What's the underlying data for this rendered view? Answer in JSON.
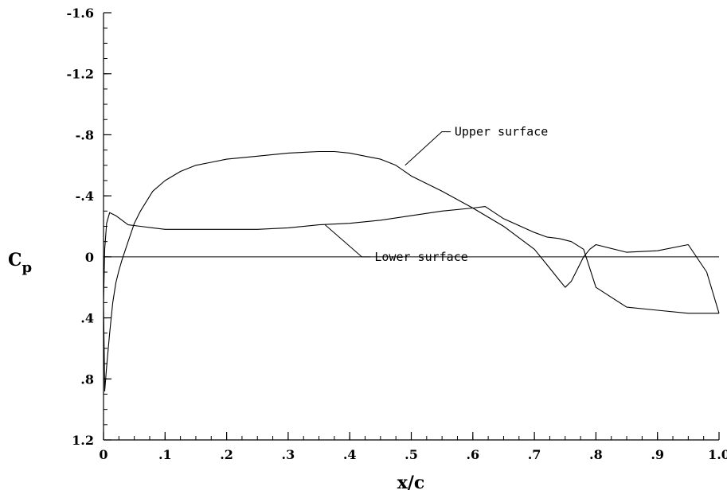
{
  "chart_data": {
    "type": "line",
    "xlabel": "x/c",
    "ylabel_main": "C",
    "ylabel_sub": "p",
    "xlim": [
      0,
      1.0
    ],
    "ylim": [
      1.2,
      -1.6
    ],
    "y_axis_inverted": true,
    "x_ticks": [
      {
        "v": 0,
        "label": "0"
      },
      {
        "v": 0.1,
        "label": ".1"
      },
      {
        "v": 0.2,
        "label": ".2"
      },
      {
        "v": 0.3,
        "label": ".3"
      },
      {
        "v": 0.4,
        "label": ".4"
      },
      {
        "v": 0.5,
        "label": ".5"
      },
      {
        "v": 0.6,
        "label": ".6"
      },
      {
        "v": 0.7,
        "label": ".7"
      },
      {
        "v": 0.8,
        "label": ".8"
      },
      {
        "v": 0.9,
        "label": ".9"
      },
      {
        "v": 1.0,
        "label": "1.0"
      }
    ],
    "y_ticks": [
      {
        "v": -1.6,
        "label": "-1.6"
      },
      {
        "v": -1.2,
        "label": "-1.2"
      },
      {
        "v": -0.8,
        "label": "-.8"
      },
      {
        "v": -0.4,
        "label": "-.4"
      },
      {
        "v": 0,
        "label": "0"
      },
      {
        "v": 0.4,
        "label": ".4"
      },
      {
        "v": 0.8,
        "label": ".8"
      },
      {
        "v": 1.2,
        "label": "1.2"
      }
    ],
    "x_minor_step": 0.025,
    "y_minor_step": 0.1,
    "zero_line": true,
    "grid": false,
    "series": [
      {
        "name": "Upper surface",
        "label_text": "Upper surface",
        "label_anchor": {
          "x": 0.56,
          "y": -0.82
        },
        "leader_to": {
          "x": 0.49,
          "y": -0.6
        },
        "x": [
          0,
          0.002,
          0.005,
          0.01,
          0.015,
          0.02,
          0.025,
          0.03,
          0.04,
          0.05,
          0.06,
          0.08,
          0.1,
          0.125,
          0.15,
          0.175,
          0.2,
          0.25,
          0.3,
          0.35,
          0.375,
          0.4,
          0.425,
          0.45,
          0.475,
          0.5,
          0.55,
          0.6,
          0.65,
          0.7,
          0.72,
          0.74,
          0.75,
          0.76,
          0.77,
          0.78,
          0.79,
          0.8,
          0.85,
          0.9,
          0.95,
          0.98,
          1.0
        ],
        "y": [
          0.3,
          0.88,
          0.72,
          0.5,
          0.3,
          0.17,
          0.09,
          0.02,
          -0.1,
          -0.22,
          -0.3,
          -0.43,
          -0.5,
          -0.56,
          -0.6,
          -0.62,
          -0.64,
          -0.66,
          -0.68,
          -0.69,
          -0.69,
          -0.68,
          -0.66,
          -0.64,
          -0.6,
          -0.53,
          -0.43,
          -0.32,
          -0.2,
          -0.05,
          0.05,
          0.15,
          0.2,
          0.16,
          0.08,
          0.0,
          -0.05,
          -0.08,
          -0.03,
          -0.04,
          -0.08,
          0.1,
          0.37
        ]
      },
      {
        "name": "Lower surface",
        "label_text": "Lower surface",
        "label_anchor": {
          "x": 0.43,
          "y": 0.0
        },
        "leader_to": {
          "x": 0.36,
          "y": -0.21
        },
        "x": [
          0,
          0.002,
          0.005,
          0.01,
          0.02,
          0.04,
          0.06,
          0.08,
          0.1,
          0.15,
          0.2,
          0.25,
          0.3,
          0.35,
          0.4,
          0.45,
          0.5,
          0.55,
          0.6,
          0.62,
          0.65,
          0.7,
          0.72,
          0.74,
          0.76,
          0.78,
          0.8,
          0.85,
          0.9,
          0.95,
          1.0
        ],
        "y": [
          0.3,
          -0.05,
          -0.22,
          -0.29,
          -0.27,
          -0.21,
          -0.2,
          -0.19,
          -0.18,
          -0.18,
          -0.18,
          -0.18,
          -0.19,
          -0.21,
          -0.22,
          -0.24,
          -0.27,
          -0.3,
          -0.32,
          -0.33,
          -0.25,
          -0.16,
          -0.13,
          -0.12,
          -0.1,
          -0.05,
          0.2,
          0.33,
          0.35,
          0.37,
          0.37
        ]
      }
    ]
  }
}
